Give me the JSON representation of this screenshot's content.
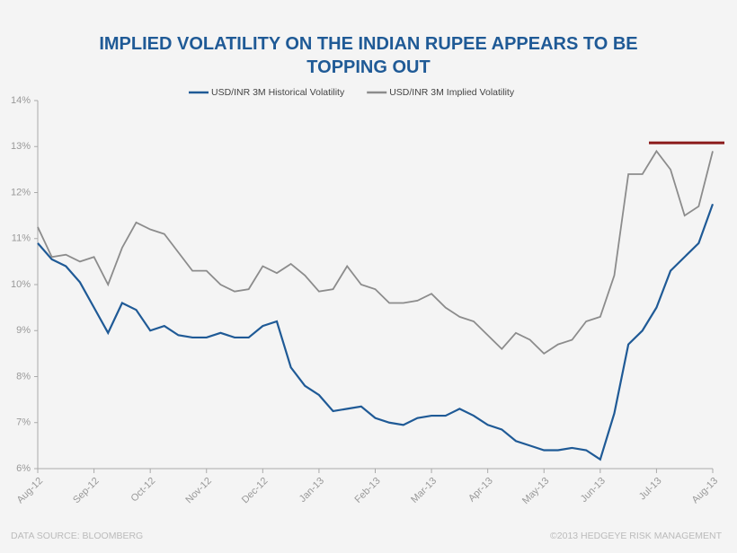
{
  "chart_data": {
    "type": "line",
    "title": "IMPLIED VOLATILITY ON THE INDIAN RUPEE APPEARS TO BE TOPPING OUT",
    "source": "DATA SOURCE: BLOOMBERG",
    "credit": "©2013 HEDGEYE RISK MANAGEMENT",
    "categories": [
      "Aug-12",
      null,
      null,
      null,
      "Sep-12",
      null,
      null,
      null,
      "Oct-12",
      null,
      null,
      null,
      "Nov-12",
      null,
      null,
      null,
      "Dec-12",
      null,
      null,
      null,
      "Jan-13",
      null,
      null,
      null,
      "Feb-13",
      null,
      null,
      null,
      "Mar-13",
      null,
      null,
      null,
      "Apr-13",
      null,
      null,
      null,
      "May-13",
      null,
      null,
      null,
      "Jun-13",
      null,
      null,
      null,
      "Jul-13",
      null,
      null,
      null,
      "Aug-13"
    ],
    "series": [
      {
        "name": "USD/INR 3M Historical Volatility",
        "color": "#1f5a96",
        "values": [
          10.9,
          10.55,
          10.4,
          10.05,
          9.5,
          8.95,
          9.6,
          9.45,
          9.0,
          9.1,
          8.9,
          8.85,
          8.85,
          8.95,
          8.85,
          8.85,
          9.1,
          9.2,
          8.2,
          7.8,
          7.6,
          7.25,
          7.3,
          7.35,
          7.1,
          7.0,
          6.95,
          7.1,
          7.15,
          7.15,
          7.3,
          7.15,
          6.95,
          6.85,
          6.6,
          6.5,
          6.4,
          6.4,
          6.45,
          6.4,
          6.2,
          7.2,
          8.7,
          9.0,
          9.5,
          10.3,
          10.6,
          10.9,
          11.75
        ]
      },
      {
        "name": "USD/INR 3M Implied Volatility",
        "color": "#8c8c8c",
        "values": [
          11.25,
          10.6,
          10.65,
          10.5,
          10.6,
          10.0,
          10.8,
          11.35,
          11.2,
          11.1,
          10.7,
          10.3,
          10.3,
          10.0,
          9.85,
          9.9,
          10.4,
          10.25,
          10.45,
          10.2,
          9.85,
          9.9,
          10.4,
          10.0,
          9.9,
          9.6,
          9.6,
          9.65,
          9.8,
          9.5,
          9.3,
          9.2,
          8.9,
          8.6,
          8.95,
          8.8,
          8.5,
          8.7,
          8.8,
          9.2,
          9.3,
          10.2,
          12.4,
          12.4,
          12.9,
          12.5,
          11.5,
          11.7,
          12.9
        ]
      }
    ],
    "reference_line": {
      "value": 13.08,
      "color": "#8b1a1a"
    },
    "ylim": [
      6,
      14
    ],
    "yticks": [
      {
        "value": 6,
        "label": "6%"
      },
      {
        "value": 7,
        "label": "7%"
      },
      {
        "value": 8,
        "label": "8%"
      },
      {
        "value": 9,
        "label": "9%"
      },
      {
        "value": 10,
        "label": "10%"
      },
      {
        "value": 11,
        "label": "11%"
      },
      {
        "value": 12,
        "label": "12%"
      },
      {
        "value": 13,
        "label": "13%"
      },
      {
        "value": 14,
        "label": "14%"
      }
    ],
    "grid": false
  }
}
